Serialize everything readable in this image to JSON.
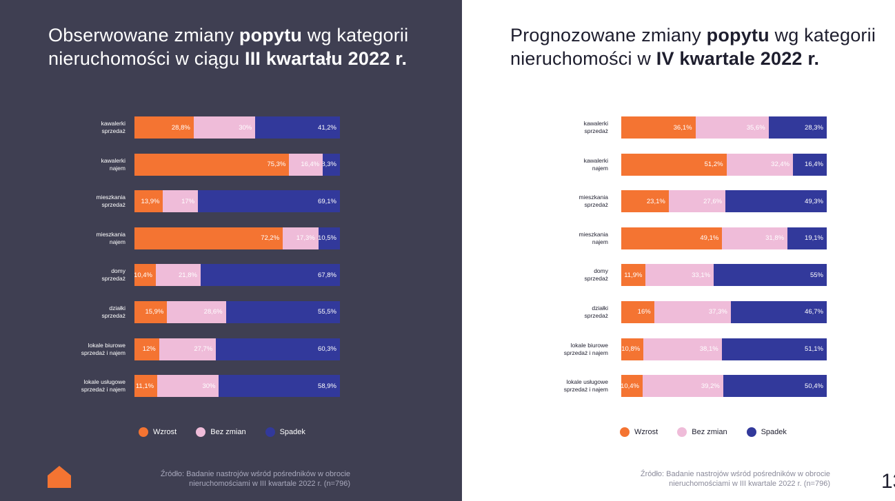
{
  "colors": {
    "increase": "#f47432",
    "no_change": "#efbcd9",
    "decrease": "#32399b",
    "left_background": "#3f3f52"
  },
  "legend": {
    "increase": "Wzrost",
    "no_change": "Bez zmian",
    "decrease": "Spadek"
  },
  "page_number": "13",
  "logo_icon": "house-icon",
  "chart_data": [
    {
      "type": "bar",
      "orientation": "horizontal-stacked",
      "title": {
        "prefix": "Obserwowane zmiany ",
        "bold1": "popytu",
        "middle": " wg kategorii nieruchomości w ciągu ",
        "bold2": "III kwartału 2022 r."
      },
      "categories": [
        [
          "kawalerki",
          "sprzedaż"
        ],
        [
          "kawalerki",
          "najem"
        ],
        [
          "mieszkania",
          "sprzedaż"
        ],
        [
          "mieszkania",
          "najem"
        ],
        [
          "domy",
          "sprzedaż"
        ],
        [
          "działki",
          "sprzedaż"
        ],
        [
          "lokale biurowe",
          "sprzedaż i najem"
        ],
        [
          "lokale usługowe",
          "sprzedaż i najem"
        ]
      ],
      "series": [
        {
          "name": "Wzrost",
          "values": [
            28.8,
            75.3,
            13.9,
            72.2,
            10.4,
            15.9,
            12,
            11.1
          ],
          "labels": [
            "28,8%",
            "75,3%",
            "13,9%",
            "72,2%",
            "10,4%",
            "15,9%",
            "12%",
            "11,1%"
          ]
        },
        {
          "name": "Bez zmian",
          "values": [
            30,
            16.4,
            17,
            17.3,
            21.8,
            28.6,
            27.7,
            30
          ],
          "labels": [
            "30%",
            "16,4%",
            "17%",
            "17,3%",
            "21,8%",
            "28,6%",
            "27,7%",
            "30%"
          ]
        },
        {
          "name": "Spadek",
          "values": [
            41.2,
            8.3,
            69.1,
            10.5,
            67.8,
            55.5,
            60.3,
            58.9
          ],
          "labels": [
            "41,2%",
            "8,3%",
            "69,1%",
            "10,5%",
            "67,8%",
            "55,5%",
            "60,3%",
            "58,9%"
          ]
        }
      ],
      "source": [
        "Źródło: Badanie nastrojów wśród pośredników w obrocie",
        "nieruchomościami w III kwartale 2022 r. (n=796)"
      ]
    },
    {
      "type": "bar",
      "orientation": "horizontal-stacked",
      "title": {
        "prefix": "Prognozowane zmiany ",
        "bold1": "popytu",
        "middle": " wg kategorii nieruchomości w ",
        "bold2": "IV kwartale 2022 r."
      },
      "categories": [
        [
          "kawalerki",
          "sprzedaż"
        ],
        [
          "kawalerki",
          "najem"
        ],
        [
          "mieszkania",
          "sprzedaż"
        ],
        [
          "mieszkania",
          "najem"
        ],
        [
          "domy",
          "sprzedaż"
        ],
        [
          "działki",
          "sprzedaż"
        ],
        [
          "lokale biurowe",
          "sprzedaż i najem"
        ],
        [
          "lokale usługowe",
          "sprzedaż i najem"
        ]
      ],
      "series": [
        {
          "name": "Wzrost",
          "values": [
            36.1,
            51.2,
            23.1,
            49.1,
            11.9,
            16,
            10.8,
            10.4
          ],
          "labels": [
            "36,1%",
            "51,2%",
            "23,1%",
            "49,1%",
            "11,9%",
            "16%",
            "10,8%",
            "10,4%"
          ]
        },
        {
          "name": "Bez zmian",
          "values": [
            35.6,
            32.4,
            27.6,
            31.8,
            33.1,
            37.3,
            38.1,
            39.2
          ],
          "labels": [
            "35,6%",
            "32,4%",
            "27,6%",
            "31,8%",
            "33,1%",
            "37,3%",
            "38,1%",
            "39,2%"
          ]
        },
        {
          "name": "Spadek",
          "values": [
            28.3,
            16.4,
            49.3,
            19.1,
            55,
            46.7,
            51.1,
            50.4
          ],
          "labels": [
            "28,3%",
            "16,4%",
            "49,3%",
            "19,1%",
            "55%",
            "46,7%",
            "51,1%",
            "50,4%"
          ]
        }
      ],
      "source": [
        "Źródło: Badanie nastrojów wśród pośredników w obrocie",
        "nieruchomościami w III kwartale 2022 r. (n=796)"
      ]
    }
  ]
}
